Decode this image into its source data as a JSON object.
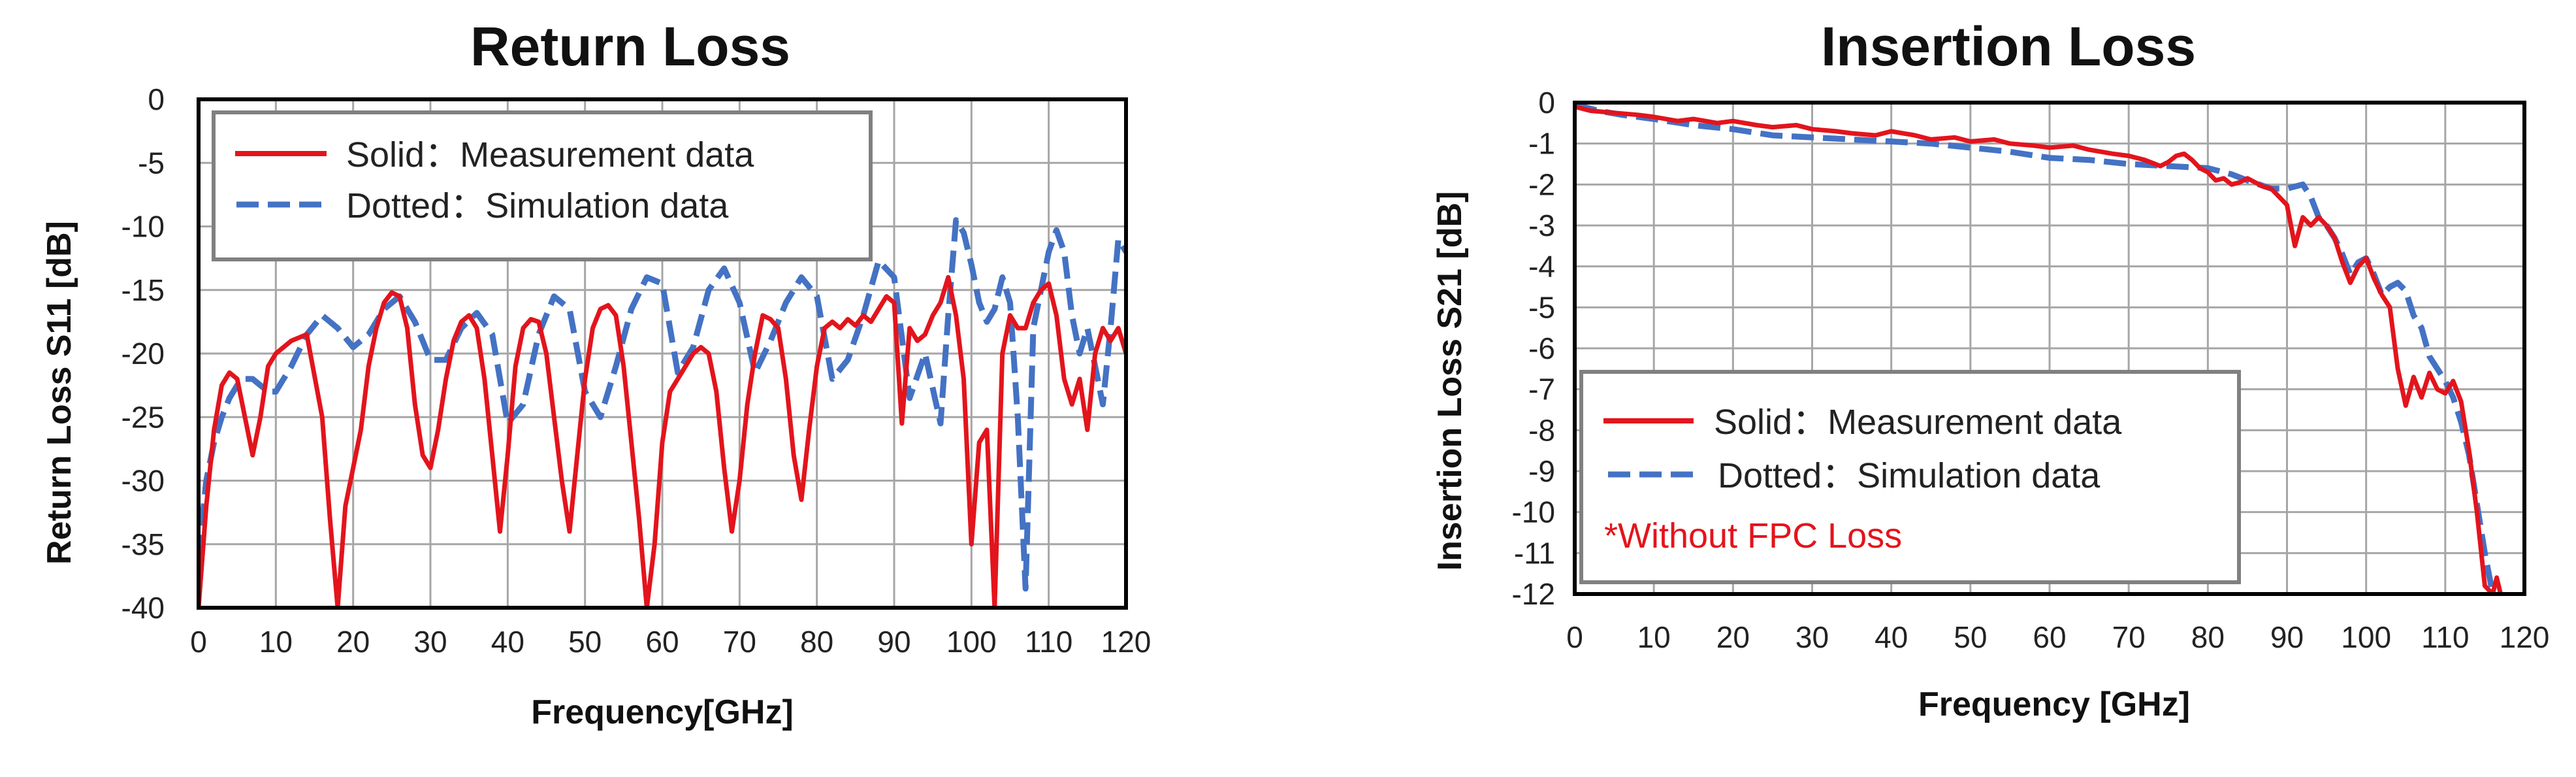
{
  "colors": {
    "measurement": "#e3141c",
    "simulation": "#4472c4",
    "grid": "#a6a6a6",
    "frame": "#000000",
    "legend_border": "#808080"
  },
  "chart_data": [
    {
      "type": "line",
      "title": "Return Loss",
      "xlabel": "Frequency[GHz]",
      "ylabel": "Return Loss S11 [dB]",
      "xlim": [
        0,
        120
      ],
      "ylim": [
        -40,
        0
      ],
      "xticks": [
        0,
        10,
        20,
        30,
        40,
        50,
        60,
        70,
        80,
        90,
        100,
        110,
        120
      ],
      "yticks": [
        0,
        -5,
        -10,
        -15,
        -20,
        -25,
        -30,
        -35,
        -40
      ],
      "grid": true,
      "legend_position": "top-left",
      "series": [
        {
          "name": "Solid：Measurement data",
          "style": "solid",
          "color": "#e3141c",
          "x": [
            0,
            1,
            2,
            3,
            4,
            5,
            6,
            7,
            8,
            9,
            10,
            12,
            14,
            16,
            17,
            18,
            19,
            20,
            21,
            22,
            23,
            24,
            25,
            26,
            27,
            28,
            29,
            30,
            31,
            32,
            33,
            34,
            35,
            36,
            37,
            38,
            39,
            40,
            41,
            42,
            43,
            44,
            45,
            46,
            47,
            48,
            49,
            50,
            51,
            52,
            53,
            54,
            55,
            56,
            57,
            58,
            59,
            60,
            61,
            62,
            63,
            64,
            65,
            66,
            67,
            68,
            69,
            70,
            71,
            72,
            73,
            74,
            75,
            76,
            77,
            78,
            79,
            80,
            81,
            82,
            83,
            84,
            85,
            86,
            87,
            88,
            89,
            90,
            91,
            92,
            93,
            94,
            95,
            96,
            97,
            98,
            99,
            100,
            101,
            102,
            103,
            104,
            105,
            106,
            107,
            108,
            109,
            110,
            111,
            112,
            113,
            114,
            115,
            116,
            117,
            118,
            119,
            120
          ],
          "y": [
            -40,
            -32,
            -26,
            -22.5,
            -21.5,
            -22,
            -25,
            -28,
            -25,
            -21,
            -20,
            -19,
            -18.5,
            -25,
            -33,
            -40,
            -32,
            -29,
            -26,
            -21,
            -18,
            -16,
            -15.2,
            -15.5,
            -18,
            -24,
            -28,
            -29,
            -26,
            -22,
            -19,
            -17.5,
            -17,
            -18,
            -22,
            -28,
            -34,
            -28,
            -21,
            -18,
            -17.3,
            -17.5,
            -20,
            -25,
            -30,
            -34,
            -28,
            -22,
            -18,
            -16.5,
            -16.2,
            -17,
            -21,
            -27,
            -33,
            -40,
            -35,
            -27,
            -23,
            -22,
            -21,
            -20,
            -19.5,
            -20,
            -23,
            -29,
            -34,
            -30,
            -24,
            -20,
            -17,
            -17.3,
            -18,
            -22,
            -28,
            -31.5,
            -26,
            -21,
            -18,
            -17.5,
            -18,
            -17.3,
            -17.8,
            -17,
            -17.5,
            -16.5,
            -15.5,
            -16,
            -25.5,
            -18,
            -19,
            -18.5,
            -17,
            -16,
            -14,
            -17,
            -22,
            -35,
            -27,
            -26,
            -40,
            -20,
            -17,
            -18,
            -18,
            -16,
            -15,
            -14.5,
            -17,
            -22,
            -24,
            -22,
            -26,
            -20,
            -18,
            -19,
            -18,
            -20
          ]
        },
        {
          "name": "Dotted：Simulation data",
          "style": "dashed",
          "color": "#4472c4",
          "x": [
            0,
            1,
            2,
            3,
            4,
            5,
            6,
            7,
            8,
            9,
            10,
            12,
            14,
            16,
            18,
            20,
            22,
            24,
            26,
            28,
            30,
            32,
            34,
            36,
            38,
            40,
            42,
            44,
            46,
            48,
            50,
            52,
            54,
            56,
            58,
            60,
            62,
            64,
            66,
            68,
            70,
            72,
            74,
            76,
            78,
            80,
            82,
            84,
            86,
            88,
            90,
            92,
            94,
            96,
            97,
            98,
            99,
            100,
            101,
            102,
            103,
            104,
            105,
            106,
            107,
            108,
            109,
            110,
            111,
            112,
            113,
            114,
            115,
            116,
            117,
            118,
            119,
            120
          ],
          "y": [
            -36,
            -30,
            -27,
            -25,
            -23.5,
            -22.5,
            -22,
            -22,
            -22.5,
            -23,
            -23,
            -21,
            -18.5,
            -17,
            -18,
            -19.5,
            -18.5,
            -16.5,
            -15.5,
            -17.5,
            -20.5,
            -20.5,
            -18,
            -16.8,
            -18.5,
            -25.5,
            -24,
            -18.5,
            -15.5,
            -16.5,
            -23,
            -25,
            -21,
            -16.5,
            -14,
            -14.5,
            -21.5,
            -19.5,
            -15,
            -13.3,
            -16,
            -21.5,
            -19,
            -16,
            -14,
            -15.5,
            -22,
            -20.5,
            -17,
            -12.7,
            -14,
            -23.5,
            -20,
            -25.5,
            -17,
            -9.5,
            -10.5,
            -13,
            -16,
            -17.5,
            -16.5,
            -14,
            -16,
            -25,
            -38.5,
            -18,
            -15,
            -12,
            -10.3,
            -12,
            -17,
            -20,
            -18,
            -21,
            -24,
            -18,
            -11,
            -12
          ]
        }
      ]
    },
    {
      "type": "line",
      "title": "Insertion Loss",
      "xlabel": "Frequency [GHz]",
      "ylabel": "Insertion Loss S21 [dB]",
      "xlim": [
        0,
        120
      ],
      "ylim": [
        -12,
        0
      ],
      "xticks": [
        0,
        10,
        20,
        30,
        40,
        50,
        60,
        70,
        80,
        90,
        100,
        110,
        120
      ],
      "yticks": [
        0,
        -1,
        -2,
        -3,
        -4,
        -5,
        -6,
        -7,
        -8,
        -9,
        -10,
        -11,
        -12
      ],
      "grid": true,
      "legend_position": "bottom-left",
      "note": "*Without FPC Loss",
      "series": [
        {
          "name": "Solid：Measurement data",
          "style": "solid",
          "color": "#e3141c",
          "x": [
            0,
            2,
            5,
            8,
            10,
            13,
            15,
            18,
            20,
            23,
            25,
            28,
            30,
            33,
            35,
            38,
            40,
            43,
            45,
            48,
            50,
            53,
            55,
            58,
            60,
            63,
            65,
            68,
            70,
            72,
            74,
            75,
            76,
            77,
            78,
            79,
            80,
            81,
            82,
            83,
            84,
            85,
            86,
            87,
            88,
            89,
            90,
            91,
            92,
            93,
            94,
            95,
            96,
            97,
            98,
            99,
            100,
            101,
            102,
            103,
            104,
            105,
            106,
            107,
            108,
            109,
            110,
            111,
            112,
            113,
            114,
            115,
            116,
            116.5,
            117
          ],
          "y": [
            -0.1,
            -0.2,
            -0.25,
            -0.3,
            -0.35,
            -0.45,
            -0.4,
            -0.5,
            -0.45,
            -0.55,
            -0.6,
            -0.55,
            -0.65,
            -0.7,
            -0.75,
            -0.8,
            -0.7,
            -0.8,
            -0.9,
            -0.85,
            -0.95,
            -0.9,
            -1.0,
            -1.05,
            -1.1,
            -1.05,
            -1.15,
            -1.25,
            -1.3,
            -1.4,
            -1.55,
            -1.45,
            -1.3,
            -1.25,
            -1.4,
            -1.6,
            -1.7,
            -1.9,
            -1.85,
            -2.0,
            -1.95,
            -1.85,
            -1.95,
            -2.05,
            -2.1,
            -2.3,
            -2.5,
            -3.5,
            -2.8,
            -3.0,
            -2.8,
            -3.0,
            -3.3,
            -3.9,
            -4.4,
            -4.0,
            -3.8,
            -4.3,
            -4.7,
            -5.0,
            -6.5,
            -7.4,
            -6.7,
            -7.2,
            -6.6,
            -7.0,
            -7.1,
            -6.8,
            -7.3,
            -8.5,
            -10.0,
            -11.8,
            -12.0,
            -11.6,
            -12.0
          ]
        },
        {
          "name": "Dotted：Simulation data",
          "style": "dashed",
          "color": "#4472c4",
          "x": [
            0,
            3,
            6,
            10,
            15,
            20,
            25,
            30,
            35,
            40,
            45,
            50,
            55,
            60,
            65,
            70,
            75,
            80,
            83,
            85,
            88,
            90,
            92,
            93,
            94,
            95,
            96,
            97,
            98,
            99,
            100,
            101,
            102,
            103,
            104,
            105,
            106,
            107,
            108,
            109,
            110,
            111,
            112,
            113,
            114,
            115,
            116
          ],
          "y": [
            -0.05,
            -0.2,
            -0.3,
            -0.4,
            -0.55,
            -0.65,
            -0.8,
            -0.85,
            -0.9,
            -0.95,
            -1.0,
            -1.1,
            -1.2,
            -1.35,
            -1.4,
            -1.5,
            -1.55,
            -1.6,
            -1.75,
            -1.9,
            -2.1,
            -2.1,
            -2.0,
            -2.3,
            -2.8,
            -3.0,
            -3.3,
            -3.7,
            -4.2,
            -3.9,
            -3.8,
            -4.2,
            -4.7,
            -4.5,
            -4.4,
            -4.6,
            -5.2,
            -5.5,
            -6.2,
            -6.5,
            -6.8,
            -7.2,
            -7.8,
            -8.6,
            -9.8,
            -11.0,
            -12.0
          ]
        }
      ]
    }
  ]
}
